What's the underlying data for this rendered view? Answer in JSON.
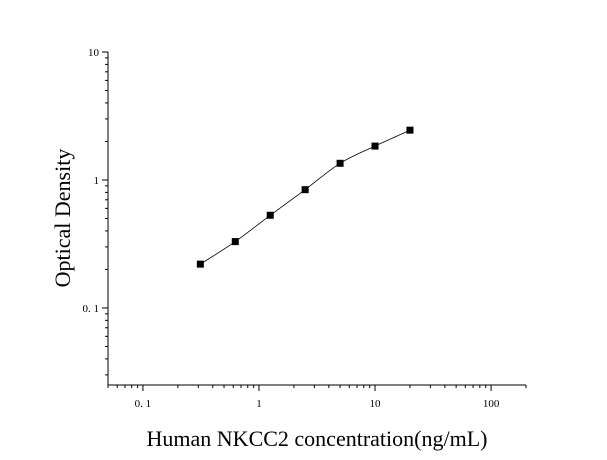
{
  "chart_data": {
    "type": "scatter",
    "title": "",
    "xlabel": "Human NKCC2 concentration(ng/mL)",
    "ylabel": "Optical Density",
    "x_scale": "log",
    "y_scale": "log",
    "xlim": [
      0.05,
      200
    ],
    "ylim": [
      0.025,
      10
    ],
    "x_ticks": [
      {
        "value": 0.1,
        "label": "0. 1"
      },
      {
        "value": 1,
        "label": "1"
      },
      {
        "value": 10,
        "label": "10"
      },
      {
        "value": 100,
        "label": "100"
      }
    ],
    "y_ticks": [
      {
        "value": 0.1,
        "label": "0. 1"
      },
      {
        "value": 1,
        "label": "1"
      },
      {
        "value": 10,
        "label": "10"
      }
    ],
    "grid": false,
    "legend": "none",
    "series": [
      {
        "x": [
          0.3125,
          0.625,
          1.25,
          2.5,
          5,
          10,
          20
        ],
        "y": [
          0.22,
          0.33,
          0.53,
          0.84,
          1.35,
          1.84,
          2.45
        ],
        "marker": "square",
        "fit_line": true
      }
    ]
  }
}
